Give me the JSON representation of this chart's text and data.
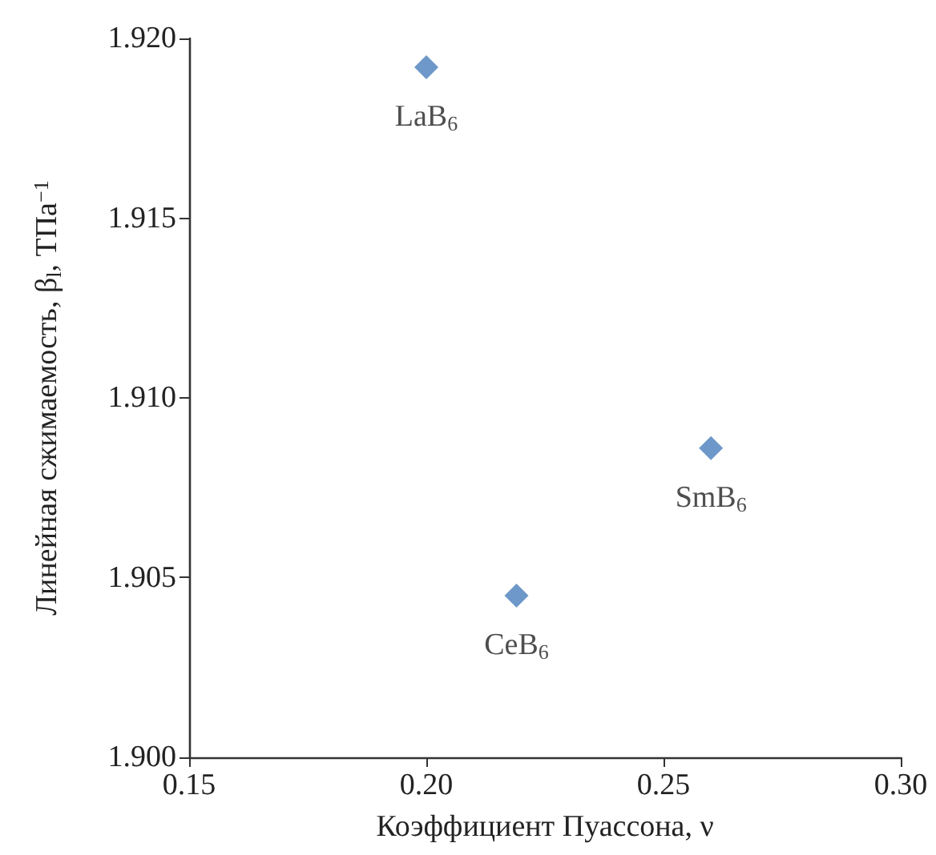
{
  "chart_data": {
    "type": "scatter",
    "xlabel": "Коэффициент Пуассона, ν",
    "ylabel": "Линейная сжимаемость, β$_{l}$, ТПа$^{−1}$",
    "x": [
      0.2,
      0.219,
      0.26
    ],
    "series": [
      {
        "color": "#4a7ebb",
        "values": [
          1.9192,
          1.9045,
          1.9086
        ]
      }
    ],
    "marker": "diamond",
    "grid": false,
    "xlim": [
      0.15,
      0.3
    ],
    "ylim": [
      1.9,
      1.92
    ],
    "xticks": [
      {
        "value": 0.15,
        "label": "0.15"
      },
      {
        "value": 0.2,
        "label": "0.20"
      },
      {
        "value": 0.25,
        "label": "0.25"
      },
      {
        "value": 0.3,
        "label": "0.30"
      }
    ],
    "yticks": [
      {
        "value": 1.9,
        "label": "1.900"
      },
      {
        "value": 1.905,
        "label": "1.905"
      },
      {
        "value": 1.91,
        "label": "1.910"
      },
      {
        "value": 1.915,
        "label": "1.915"
      },
      {
        "value": 1.92,
        "label": "1.920"
      }
    ],
    "annotations": [
      {
        "text": "LaB$_{6}$",
        "x": 0.2,
        "y": 1.9192
      },
      {
        "text": "CeB$_{6}$",
        "x": 0.219,
        "y": 1.9045
      },
      {
        "text": "SmB$_{6}$",
        "x": 0.26,
        "y": 1.9086
      }
    ]
  }
}
